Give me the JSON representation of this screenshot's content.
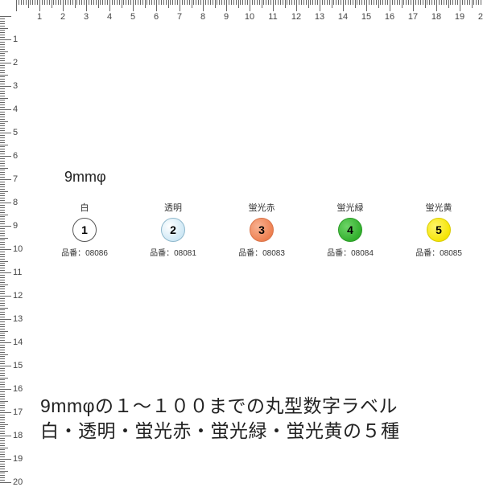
{
  "ruler": {
    "numbers": [
      1,
      2,
      3,
      4,
      5,
      6,
      7,
      8,
      9,
      10,
      11,
      12,
      13,
      14,
      15,
      16,
      17,
      18,
      19,
      20
    ],
    "majorCount": 20,
    "subdivisions": 10,
    "unitPx": 29,
    "originPx": 20,
    "tickColor": "#666666",
    "numberColor": "#444444"
  },
  "title": "9mmφ",
  "swatchCodePrefix": "品番：",
  "swatches": [
    {
      "label": "白",
      "number": "1",
      "code": "08086",
      "circleFill": "#ffffff",
      "circleBorder": "#555555",
      "textColor": "#000000"
    },
    {
      "label": "透明",
      "number": "2",
      "code": "08081",
      "circleFill": "#cfe8f5",
      "circleBorder": "#8fb8cc",
      "textColor": "#000000",
      "gradient": "radial-gradient(circle at 35% 35%, #ffffff, #cfe8f5 70%)"
    },
    {
      "label": "蛍光赤",
      "number": "3",
      "code": "08083",
      "circleFill": "#f08858",
      "circleBorder": "#d9744a",
      "textColor": "#000000",
      "gradient": "radial-gradient(circle at 35% 35%, #f8b292, #ed7d4d 75%)"
    },
    {
      "label": "蛍光緑",
      "number": "4",
      "code": "08084",
      "circleFill": "#35b52f",
      "circleBorder": "#2a9a26",
      "textColor": "#000000",
      "gradient": "radial-gradient(circle at 35% 35%, #6dd467, #2fae2a 75%)"
    },
    {
      "label": "蛍光黄",
      "number": "5",
      "code": "08085",
      "circleFill": "#f9e900",
      "circleBorder": "#d9cc00",
      "textColor": "#000000",
      "gradient": "radial-gradient(circle at 35% 35%, #fff56a, #f5e400 75%)"
    }
  ],
  "description": {
    "line1": "9mmφの１〜１００までの丸型数字ラベル",
    "line2": "白・透明・蛍光赤・蛍光緑・蛍光黄の５種"
  },
  "colors": {
    "background": "#ffffff",
    "text": "#222222"
  }
}
